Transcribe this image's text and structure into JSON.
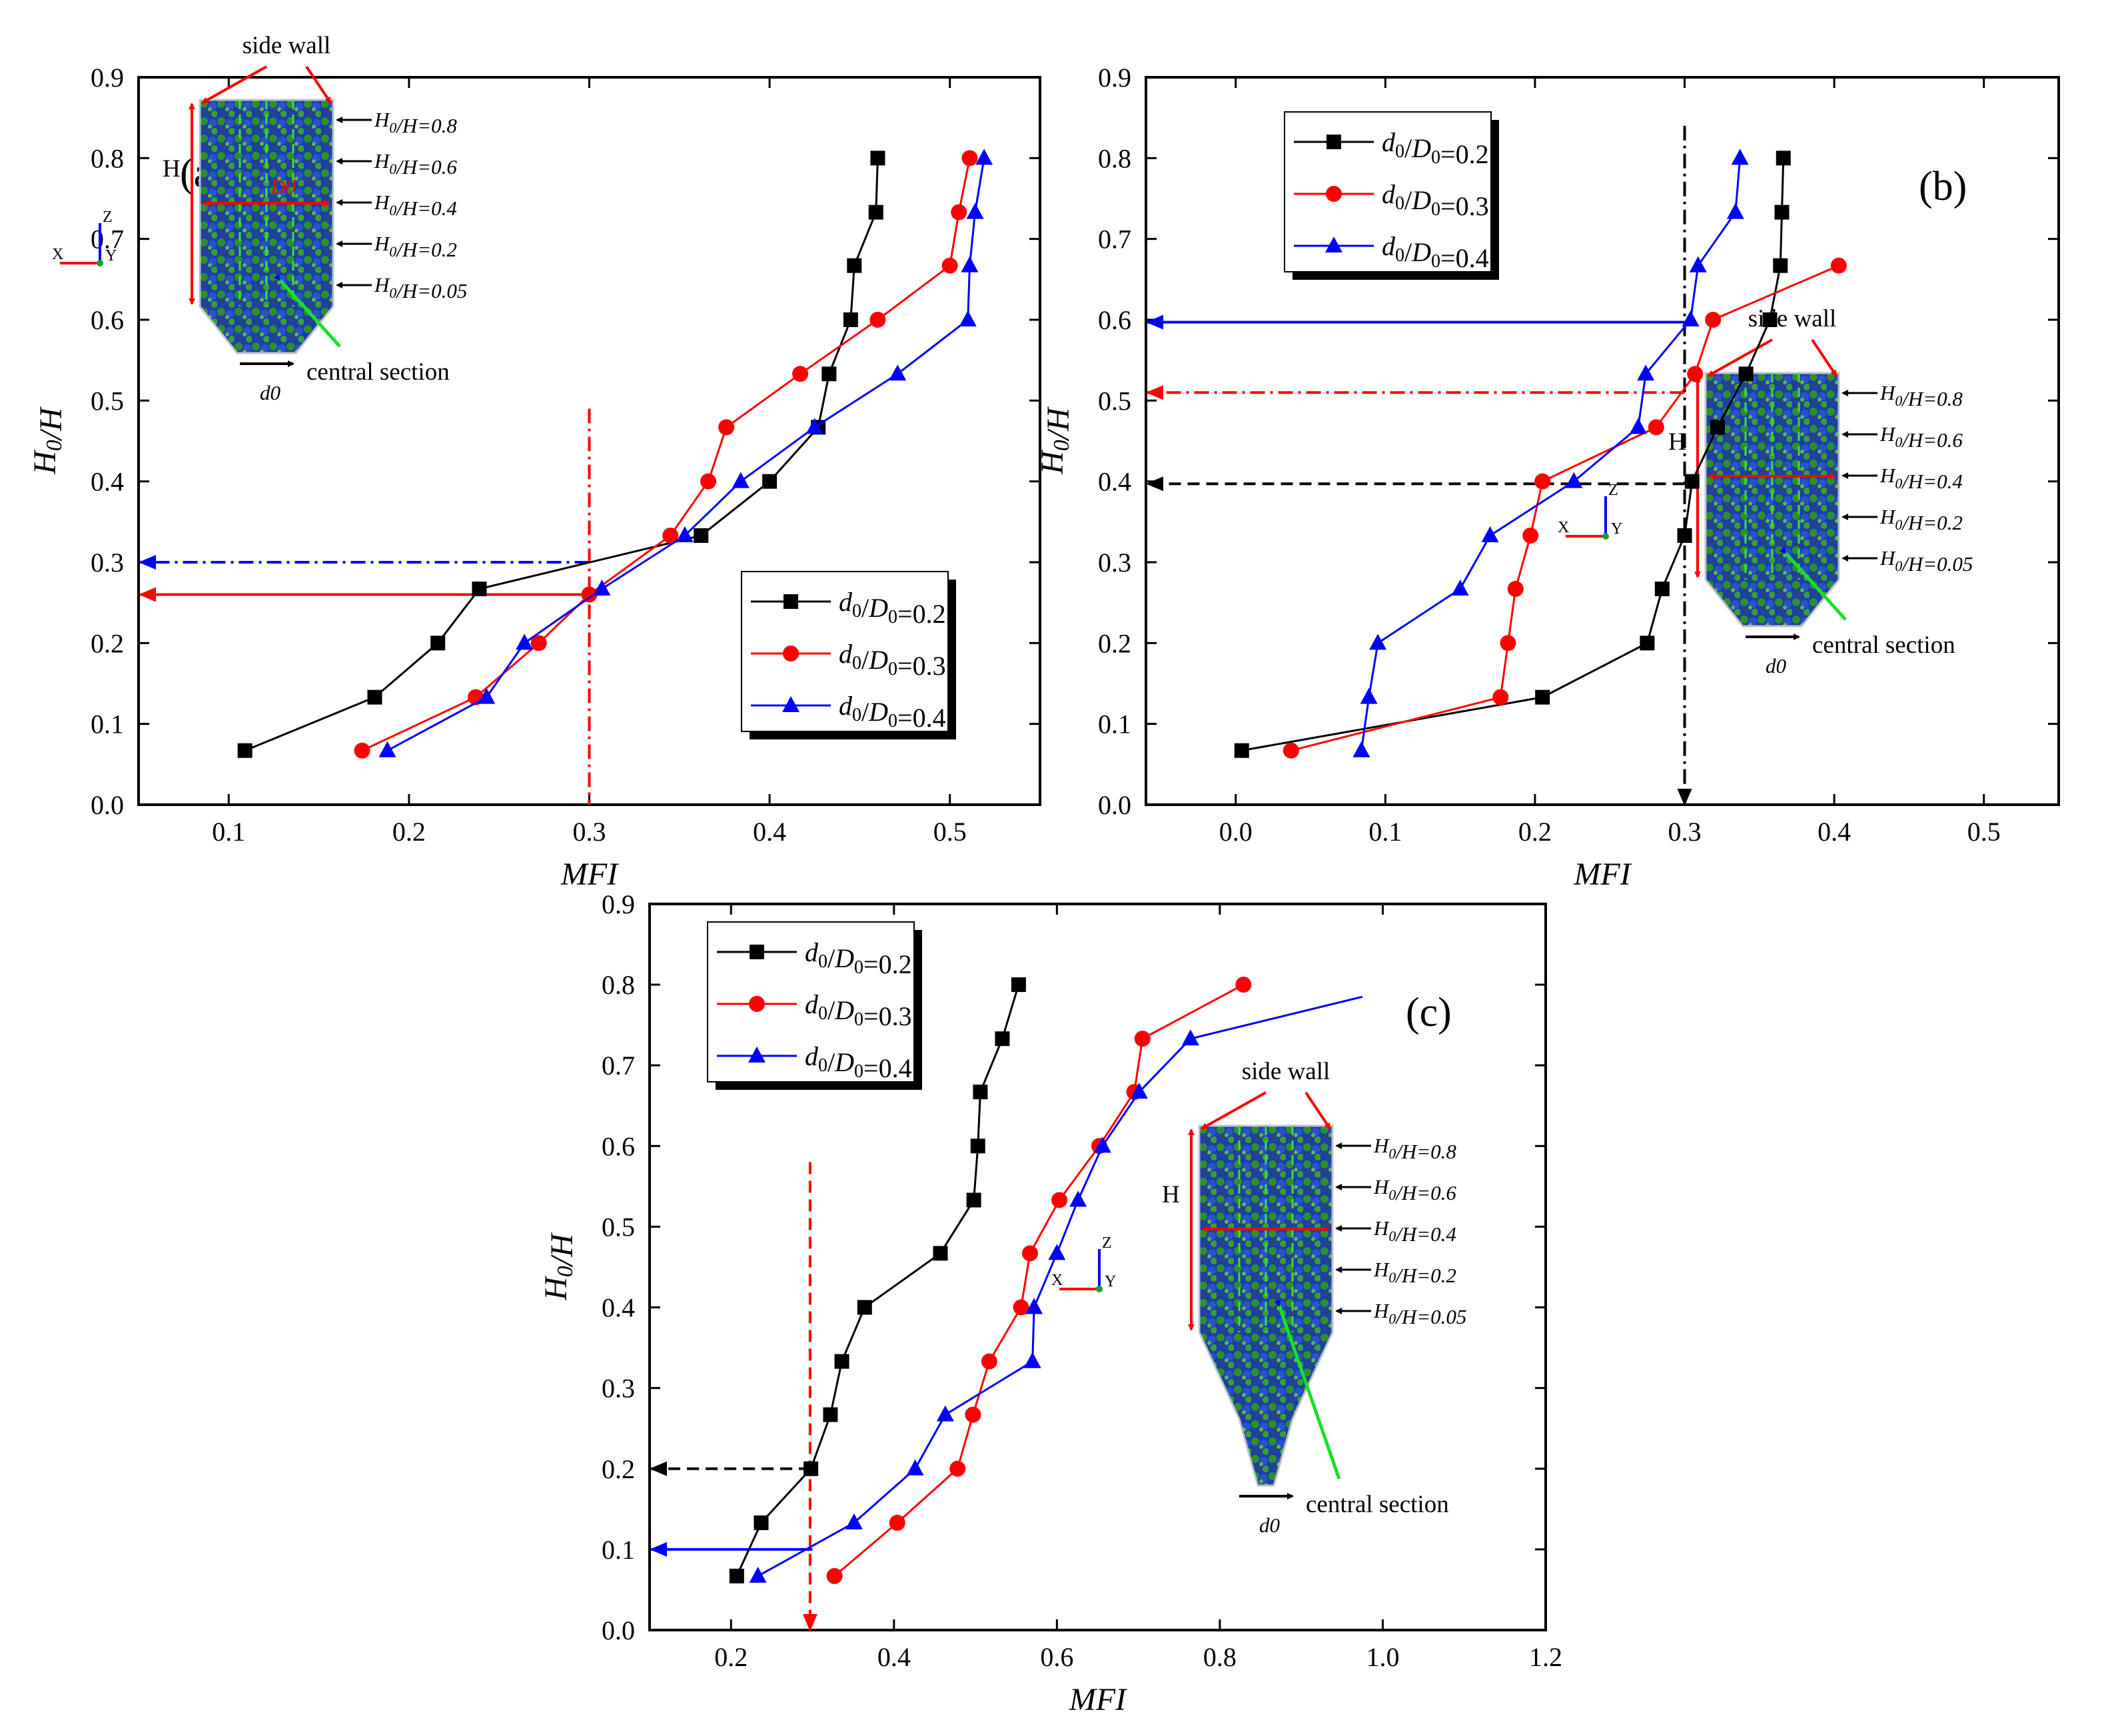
{
  "figure": {
    "x_label": "MFI",
    "y_label": "H0/H",
    "colors": {
      "s1": "#000000",
      "s2": "#ff0000",
      "s3": "#0000ff",
      "aux": "#ff0000"
    }
  },
  "chart_data": [
    {
      "type": "line",
      "panel_label": "(a)",
      "xlabel": "MFI",
      "ylabel": "H0/H",
      "xlim": [
        0.05,
        0.55
      ],
      "ylim": [
        0.0,
        0.9
      ],
      "xticks": [
        "0.1",
        "0.2",
        "0.3",
        "0.4",
        "0.5"
      ],
      "yticks": [
        "0.0",
        "0.1",
        "0.2",
        "0.3",
        "0.4",
        "0.5",
        "0.6",
        "0.7",
        "0.8",
        "0.9"
      ],
      "legend_position": "bottom-right",
      "series": [
        {
          "name": "d0/D0=0.2",
          "marker": "square",
          "color": "#000000",
          "x": [
            0.109,
            0.181,
            0.216,
            0.239,
            0.362,
            0.4,
            0.427,
            0.433,
            0.445,
            0.447,
            0.459,
            0.46
          ],
          "y": [
            0.067,
            0.133,
            0.2,
            0.267,
            0.333,
            0.4,
            0.467,
            0.533,
            0.6,
            0.667,
            0.733,
            0.8
          ]
        },
        {
          "name": "d0/D0=0.3",
          "marker": "circle",
          "color": "#ff0000",
          "x": [
            0.174,
            0.237,
            0.272,
            0.3,
            0.345,
            0.366,
            0.376,
            0.417,
            0.46,
            0.5,
            0.505,
            0.511
          ],
          "y": [
            0.067,
            0.133,
            0.2,
            0.26,
            0.333,
            0.4,
            0.467,
            0.533,
            0.6,
            0.667,
            0.733,
            0.8
          ]
        },
        {
          "name": "d0/D0=0.4",
          "marker": "triangle",
          "color": "#0000ff",
          "x": [
            0.188,
            0.243,
            0.264,
            0.307,
            0.353,
            0.384,
            0.425,
            0.471,
            0.51,
            0.511,
            0.514,
            0.519
          ],
          "y": [
            0.067,
            0.133,
            0.2,
            0.267,
            0.333,
            0.4,
            0.467,
            0.533,
            0.6,
            0.667,
            0.733,
            0.8
          ]
        }
      ],
      "guides": [
        {
          "kind": "h-arrow",
          "y": 0.3,
          "x_from": 0.3,
          "color": "#0000ff",
          "style": "dash-dot"
        },
        {
          "kind": "h-arrow",
          "y": 0.26,
          "x_from": 0.3,
          "color": "#ff0000",
          "style": "solid"
        },
        {
          "kind": "v-line",
          "x": 0.3,
          "y_from": 0.0,
          "y_to": 0.49,
          "color": "#ff0000",
          "style": "dash-dot"
        }
      ],
      "inset": {
        "placement": "top-left",
        "top_label": "side wall",
        "height_label": "H",
        "diameter_label": "D0",
        "outlet_label": "d0",
        "section_label": "central section",
        "level_labels": [
          "H0/H=0.8",
          "H0/H=0.6",
          "H0/H=0.4",
          "H0/H=0.2",
          "H0/H=0.05"
        ],
        "shape": "hopper"
      }
    },
    {
      "type": "line",
      "panel_label": "(b)",
      "xlabel": "MFI",
      "ylabel": "H0/H",
      "xlim": [
        -0.06,
        0.55
      ],
      "ylim": [
        0.0,
        0.9
      ],
      "xticks": [
        "0.0",
        "0.1",
        "0.2",
        "0.3",
        "0.4",
        "0.5"
      ],
      "yticks": [
        "0.0",
        "0.1",
        "0.2",
        "0.3",
        "0.4",
        "0.5",
        "0.6",
        "0.7",
        "0.8",
        "0.9"
      ],
      "legend_position": "top-left",
      "series": [
        {
          "name": "d0/D0=0.2",
          "marker": "square",
          "color": "#000000",
          "x": [
            0.004,
            0.205,
            0.275,
            0.285,
            0.3,
            0.305,
            0.322,
            0.341,
            0.357,
            0.364,
            0.365,
            0.366
          ],
          "y": [
            0.067,
            0.133,
            0.2,
            0.267,
            0.333,
            0.4,
            0.467,
            0.533,
            0.6,
            0.667,
            0.733,
            0.8
          ]
        },
        {
          "name": "d0/D0=0.3",
          "marker": "circle",
          "color": "#ff0000",
          "x": [
            0.037,
            0.177,
            0.182,
            0.187,
            0.197,
            0.205,
            0.281,
            0.307,
            0.319,
            0.403
          ],
          "y": [
            0.067,
            0.133,
            0.2,
            0.267,
            0.333,
            0.4,
            0.467,
            0.533,
            0.6,
            0.667
          ]
        },
        {
          "name": "d0/D0=0.4",
          "marker": "triangle",
          "color": "#0000ff",
          "x": [
            0.084,
            0.089,
            0.095,
            0.15,
            0.17,
            0.226,
            0.269,
            0.274,
            0.304,
            0.309,
            0.334,
            0.337
          ],
          "y": [
            0.067,
            0.133,
            0.2,
            0.267,
            0.333,
            0.4,
            0.467,
            0.533,
            0.6,
            0.667,
            0.733,
            0.8
          ]
        }
      ],
      "guides": [
        {
          "kind": "h-arrow",
          "y": 0.597,
          "x_from": 0.3,
          "color": "#0000ff",
          "style": "solid"
        },
        {
          "kind": "h-arrow",
          "y": 0.51,
          "x_from": 0.3,
          "color": "#ff0000",
          "style": "dash-dot"
        },
        {
          "kind": "h-arrow",
          "y": 0.397,
          "x_from": 0.3,
          "color": "#000000",
          "style": "dashed"
        },
        {
          "kind": "v-line",
          "x": 0.3,
          "y_from": 0.0,
          "y_to": 0.84,
          "color": "#000000",
          "style": "dash-dot"
        }
      ],
      "inset": {
        "placement": "bottom-right",
        "top_label": "side wall",
        "height_label": "H",
        "outlet_label": "d0",
        "section_label": "central section",
        "level_labels": [
          "H0/H=0.8",
          "H0/H=0.6",
          "H0/H=0.4",
          "H0/H=0.2",
          "H0/H=0.05"
        ],
        "shape": "hopper"
      }
    },
    {
      "type": "line",
      "panel_label": "(c)",
      "xlabel": "MFI",
      "ylabel": "H0/H",
      "xlim": [
        0.1,
        1.2
      ],
      "ylim": [
        0.0,
        0.9
      ],
      "xticks": [
        "0.2",
        "0.4",
        "0.6",
        "0.8",
        "1.0",
        "1.2"
      ],
      "yticks": [
        "0.0",
        "0.1",
        "0.2",
        "0.3",
        "0.4",
        "0.5",
        "0.6",
        "0.7",
        "0.8",
        "0.9"
      ],
      "legend_position": "top-left",
      "series": [
        {
          "name": "d0/D0=0.2",
          "marker": "square",
          "color": "#000000",
          "x": [
            0.207,
            0.237,
            0.298,
            0.322,
            0.336,
            0.364,
            0.457,
            0.498,
            0.503,
            0.506,
            0.533,
            0.553
          ],
          "y": [
            0.067,
            0.133,
            0.2,
            0.267,
            0.333,
            0.4,
            0.467,
            0.533,
            0.6,
            0.667,
            0.733,
            0.8
          ]
        },
        {
          "name": "d0/D0=0.3",
          "marker": "circle",
          "color": "#ff0000",
          "x": [
            0.327,
            0.404,
            0.478,
            0.497,
            0.517,
            0.556,
            0.567,
            0.603,
            0.652,
            0.695,
            0.705,
            0.829
          ],
          "y": [
            0.067,
            0.133,
            0.2,
            0.267,
            0.333,
            0.4,
            0.467,
            0.533,
            0.6,
            0.667,
            0.733,
            0.8
          ]
        },
        {
          "name": "d0/D0=0.4",
          "marker": "triangle",
          "color": "#0000ff",
          "x": [
            0.233,
            0.351,
            0.426,
            0.463,
            0.57,
            0.572,
            0.6,
            0.626,
            0.656,
            0.701,
            0.764,
            0.975
          ],
          "y": [
            0.067,
            0.133,
            0.2,
            0.267,
            0.333,
            0.4,
            0.467,
            0.533,
            0.6,
            0.667,
            0.733,
            0.785
          ],
          "last_point_unmarked": true
        }
      ],
      "guides": [
        {
          "kind": "h-arrow",
          "y": 0.2,
          "x_from": 0.298,
          "color": "#000000",
          "style": "dashed"
        },
        {
          "kind": "h-arrow",
          "y": 0.1,
          "x_from": 0.3,
          "color": "#0000ff",
          "style": "solid"
        },
        {
          "kind": "v-arrow-down",
          "x": 0.297,
          "y_from": 0.58,
          "y_to": 0.0,
          "color": "#ff0000",
          "style": "dashed"
        }
      ],
      "inset": {
        "placement": "bottom-right",
        "top_label": "side wall",
        "height_label": "H",
        "outlet_label": "d0",
        "section_label": "central section",
        "level_labels": [
          "H0/H=0.8",
          "H0/H=0.6",
          "H0/H=0.4",
          "H0/H=0.2",
          "H0/H=0.05"
        ],
        "shape": "funnel"
      }
    }
  ]
}
